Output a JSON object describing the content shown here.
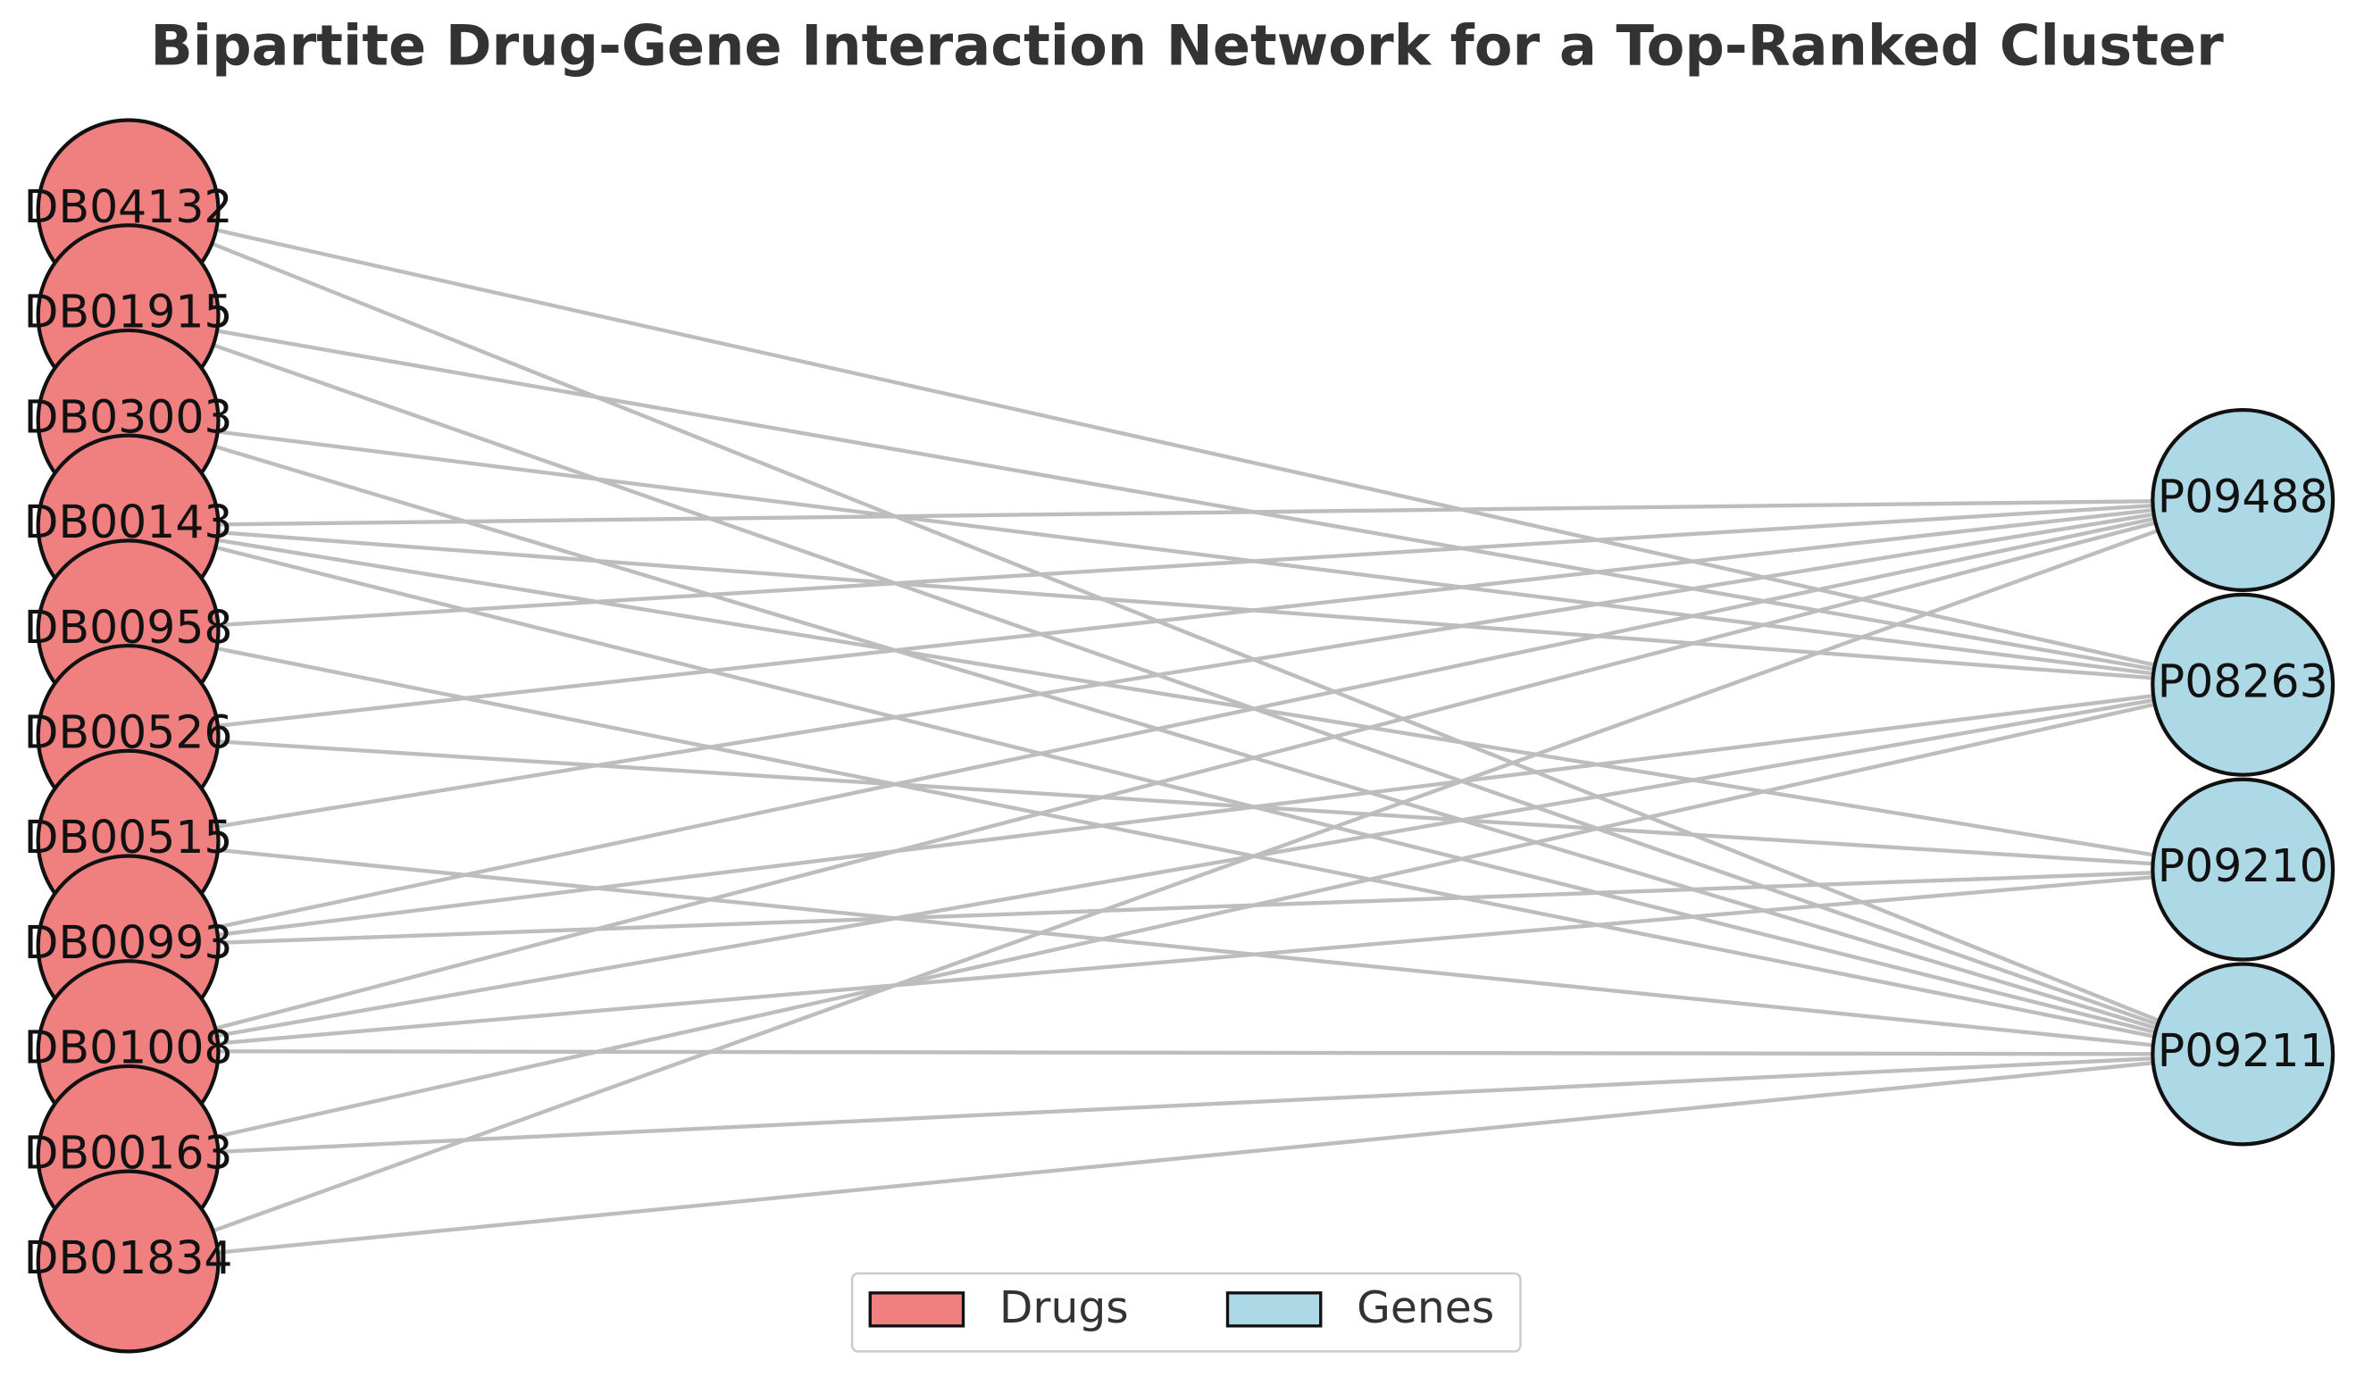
{
  "title": "Bipartite Drug-Gene Interaction Network for a Top-Ranked Cluster",
  "drugs": [
    "DB04132",
    "DB01915",
    "DB03003",
    "DB00143",
    "DB00958",
    "DB00526",
    "DB00515",
    "DB00993",
    "DB01008",
    "DB00163",
    "DB01834"
  ],
  "genes": [
    "P09488",
    "P08263",
    "P09210",
    "P09211"
  ],
  "edges": [
    [
      0,
      1
    ],
    [
      0,
      3
    ],
    [
      1,
      1
    ],
    [
      1,
      3
    ],
    [
      2,
      1
    ],
    [
      2,
      3
    ],
    [
      3,
      0
    ],
    [
      3,
      1
    ],
    [
      3,
      2
    ],
    [
      3,
      3
    ],
    [
      4,
      0
    ],
    [
      4,
      3
    ],
    [
      5,
      0
    ],
    [
      5,
      2
    ],
    [
      6,
      0
    ],
    [
      6,
      3
    ],
    [
      7,
      0
    ],
    [
      7,
      1
    ],
    [
      7,
      2
    ],
    [
      8,
      0
    ],
    [
      8,
      1
    ],
    [
      8,
      2
    ],
    [
      8,
      3
    ],
    [
      9,
      1
    ],
    [
      9,
      3
    ],
    [
      10,
      0
    ],
    [
      10,
      3
    ]
  ],
  "legend": [
    "Drugs",
    "Genes"
  ]
}
